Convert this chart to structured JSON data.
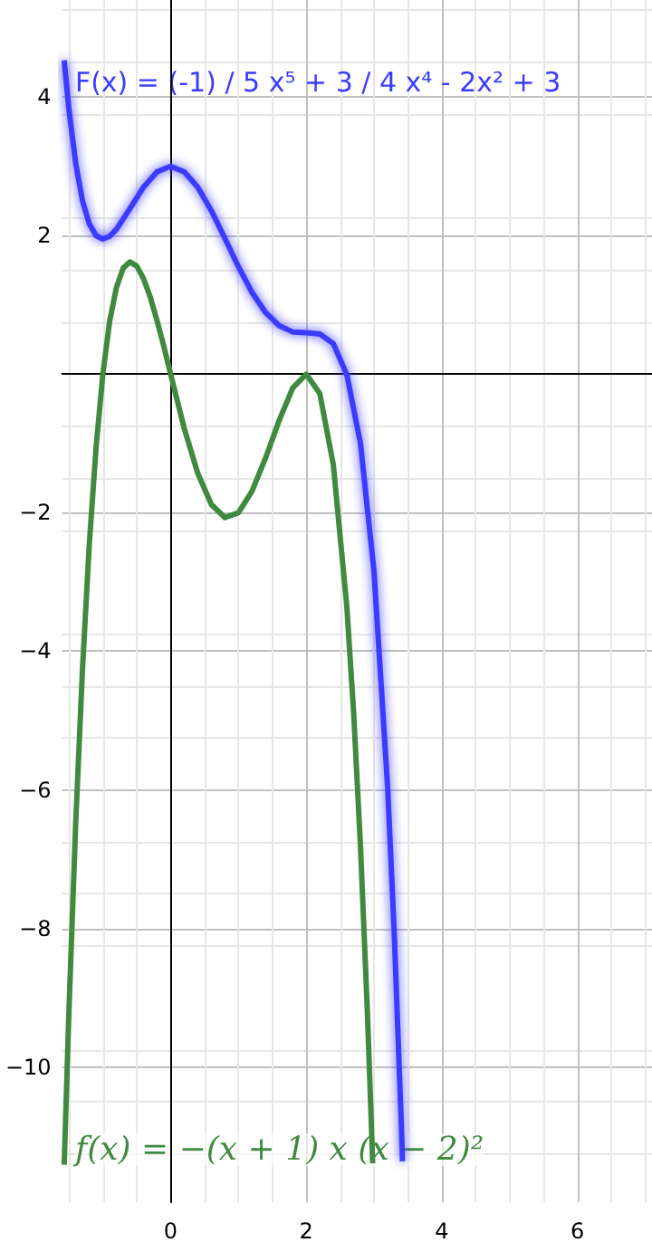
{
  "chart_data": {
    "type": "line",
    "xlim": [
      -1.6,
      7.1
    ],
    "ylim": [
      -11.95,
      5.4
    ],
    "xticks": [
      0,
      2,
      4,
      6
    ],
    "yticks": [
      -10,
      -8,
      -6,
      -4,
      -2,
      2,
      4
    ],
    "grid": true,
    "legend": false,
    "marker": "none",
    "line_style": "solid",
    "series": [
      {
        "name": "F(x) = (-1) / 5 x⁵ + 3 / 4 x⁴ - 2x² + 3",
        "color": "#3b3bff",
        "x": [
          -1.57,
          -1.5,
          -1.4,
          -1.3,
          -1.2,
          -1.1,
          -1.0,
          -0.9,
          -0.8,
          -0.6,
          -0.4,
          -0.2,
          0,
          0.2,
          0.4,
          0.6,
          0.8,
          1.0,
          1.2,
          1.4,
          1.6,
          1.8,
          2.0,
          2.2,
          2.4,
          2.6,
          2.8,
          3.0,
          3.2,
          3.3,
          3.4,
          3.42
        ],
        "values": [
          4.53,
          3.82,
          3.04,
          2.5,
          2.17,
          2.0,
          1.95,
          1.99,
          2.09,
          2.39,
          2.7,
          2.92,
          3,
          2.92,
          2.7,
          2.36,
          1.96,
          1.55,
          1.18,
          0.89,
          0.7,
          0.61,
          0.6,
          0.58,
          0.44,
          -0.01,
          -1.0,
          -2.85,
          -5.95,
          -8.11,
          -10.77,
          -11.36
        ]
      },
      {
        "name": "f(x) = −(x + 1) x (x − 2)²",
        "color": "#3f8a3f",
        "x": [
          -1.57,
          -1.5,
          -1.4,
          -1.3,
          -1.2,
          -1.1,
          -1.0,
          -0.9,
          -0.8,
          -0.7,
          -0.6,
          -0.5,
          -0.4,
          -0.3,
          -0.2,
          -0.1,
          0,
          0.2,
          0.4,
          0.6,
          0.8,
          1.0,
          1.2,
          1.4,
          1.6,
          1.8,
          2.0,
          2.2,
          2.4,
          2.6,
          2.7,
          2.8,
          2.9,
          2.95,
          2.98
        ],
        "values": [
          -11.41,
          -9.19,
          -6.47,
          -4.25,
          -2.46,
          -1.06,
          0,
          0.76,
          1.25,
          1.53,
          1.62,
          1.56,
          1.38,
          1.11,
          0.77,
          0.4,
          0,
          -0.78,
          -1.43,
          -1.88,
          -2.07,
          -2.0,
          -1.69,
          -1.21,
          -0.67,
          -0.2,
          0,
          -0.28,
          -1.31,
          -3.37,
          -4.9,
          -6.81,
          -9.16,
          -10.52,
          -11.39
        ]
      }
    ]
  }
}
